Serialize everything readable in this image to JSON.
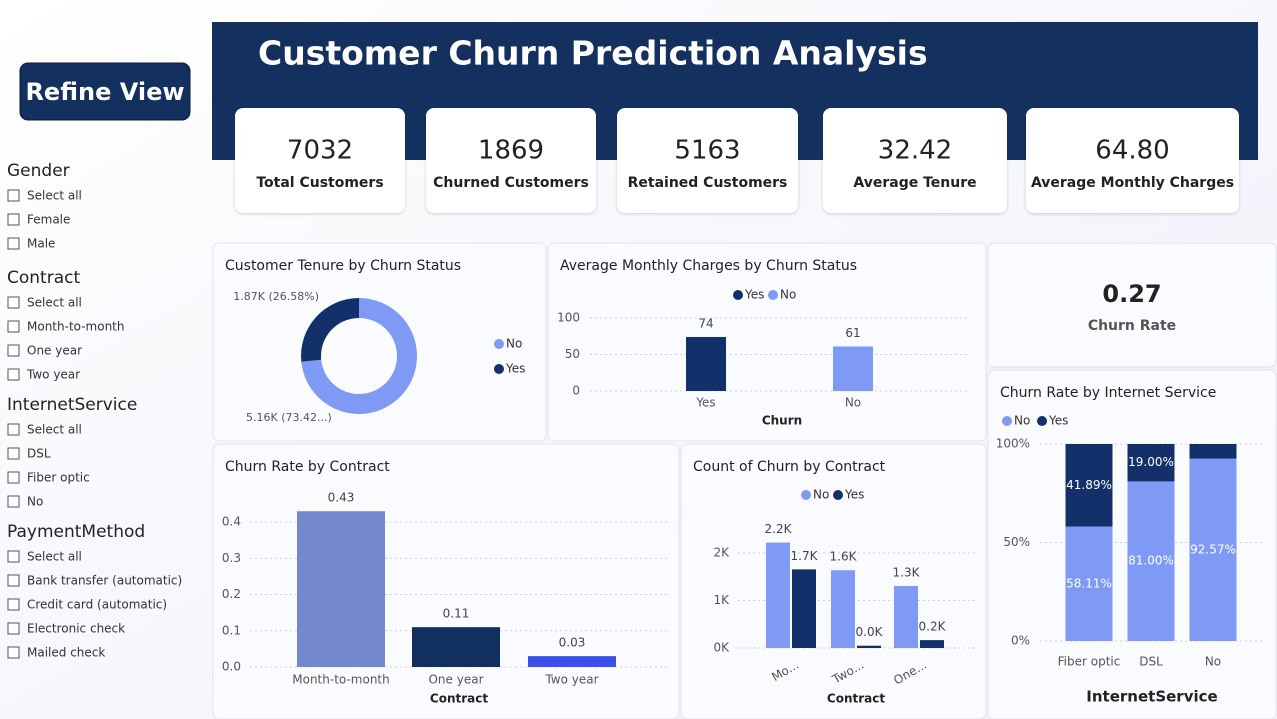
{
  "title": "Customer Churn Prediction Analysis",
  "button": "Refine View",
  "filters": [
    {
      "title": "Gender",
      "options": [
        "Select all",
        "Female",
        "Male"
      ]
    },
    {
      "title": "Contract",
      "options": [
        "Select all",
        "Month-to-month",
        "One year",
        "Two year"
      ]
    },
    {
      "title": "InternetService",
      "options": [
        "Select all",
        "DSL",
        "Fiber optic",
        "No"
      ]
    },
    {
      "title": "PaymentMethod",
      "options": [
        "Select all",
        "Bank transfer (automatic)",
        "Credit card (automatic)",
        "Electronic check",
        "Mailed check"
      ]
    }
  ],
  "kpis": [
    {
      "value": "7032",
      "label": "Total Customers"
    },
    {
      "value": "1869",
      "label": "Churned Customers"
    },
    {
      "value": "5163",
      "label": "Retained Customers"
    },
    {
      "value": "32.42",
      "label": "Average Tenure"
    },
    {
      "value": "64.80",
      "label": "Average Monthly Charges"
    }
  ],
  "churn_rate_card": {
    "value": "0.27",
    "label": "Churn Rate"
  },
  "chart_data": [
    {
      "type": "donut",
      "title": "Customer Tenure by Churn Status",
      "categories": [
        "No",
        "Yes"
      ],
      "values": [
        5163,
        1869
      ],
      "value_labels": [
        "5.16K (73.42...)",
        "1.87K (26.58%)"
      ],
      "colors": [
        "#7f9af5",
        "#13306a"
      ]
    },
    {
      "type": "bar",
      "title": "Average Monthly Charges by Churn Status",
      "x_label": "Churn",
      "categories": [
        "Yes",
        "No"
      ],
      "values": [
        74,
        61
      ],
      "colors": [
        "#13306a",
        "#7f9af5"
      ],
      "ylim": [
        0,
        100
      ],
      "yticks": [
        0,
        50,
        100
      ],
      "grid": true
    },
    {
      "type": "bar",
      "title": "Churn Rate by Contract",
      "x_label": "Contract",
      "categories": [
        "Month-to-month",
        "One year",
        "Two year"
      ],
      "values": [
        0.43,
        0.11,
        0.03
      ],
      "colors": [
        "#7489cc",
        "#12305f",
        "#3a50e8"
      ],
      "ylim": [
        0,
        0.45
      ],
      "yticks": [
        {
          "value": 0,
          "label": "0.0"
        },
        0.1,
        0.2,
        0.3,
        0.4
      ],
      "grid": true
    },
    {
      "type": "grouped_bar",
      "title": "Count of Churn by Contract",
      "x_label": "Contract",
      "categories": [
        "Mo...",
        "Two...",
        "One..."
      ],
      "series": [
        {
          "name": "No",
          "color": "#7f9af5",
          "values": [
            2220,
            1637,
            1306
          ],
          "value_labels": [
            "2.2K",
            "1.6K",
            "1.3K"
          ]
        },
        {
          "name": "Yes",
          "color": "#13306a",
          "values": [
            1655,
            48,
            166
          ],
          "value_labels": [
            "1.7K",
            "0.0K",
            "0.2K"
          ]
        }
      ],
      "ylim": [
        0,
        2800
      ],
      "yticks": [
        {
          "value": 0,
          "label": "0K"
        },
        {
          "value": 1000,
          "label": "1K"
        },
        {
          "value": 2000,
          "label": "2K"
        }
      ],
      "grid": true
    },
    {
      "type": "stacked_bar",
      "title": "Churn Rate by Internet Service",
      "x_label": "InternetService",
      "categories": [
        "Fiber optic",
        "DSL",
        "No"
      ],
      "series": [
        {
          "name": "No",
          "color": "#7f9af5",
          "values": [
            58.11,
            81,
            92.57
          ],
          "value_labels": [
            "58.11%",
            "81.00%",
            "92.57%"
          ]
        },
        {
          "name": "Yes",
          "color": "#13306a",
          "values": [
            41.89,
            19,
            7.43
          ],
          "value_labels": [
            "41.89%",
            "19.00%",
            null
          ]
        }
      ],
      "ylim": [
        0,
        100
      ],
      "yticks": [
        {
          "value": 0,
          "label": "0%"
        },
        {
          "value": 50,
          "label": "50%"
        },
        {
          "value": 100,
          "label": "100%"
        }
      ],
      "grid": true
    }
  ]
}
